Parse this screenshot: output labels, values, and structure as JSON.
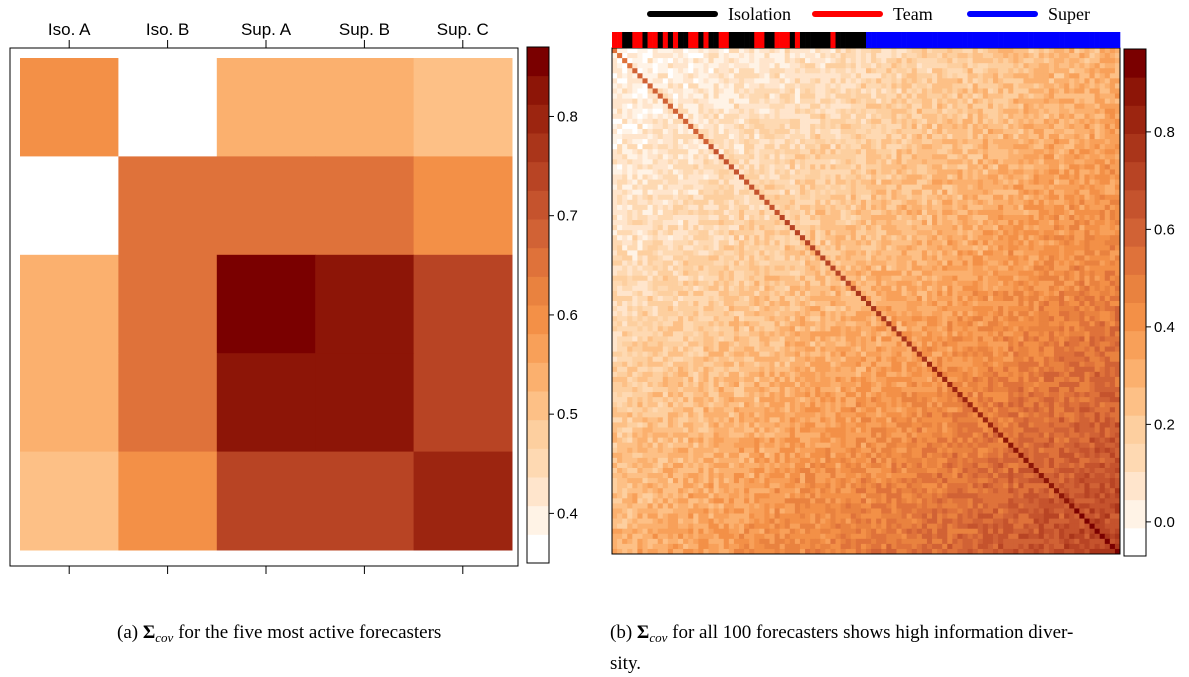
{
  "chart_data": [
    {
      "type": "heatmap",
      "panel": "a",
      "column_labels": [
        "Iso. A",
        "Iso. B",
        "Sup. A",
        "Sup. B",
        "Sup. C"
      ],
      "row_labels": [],
      "matrix": [
        [
          0.6,
          0.35,
          0.55,
          0.55,
          0.5
        ],
        [
          0.35,
          0.65,
          0.65,
          0.65,
          0.6
        ],
        [
          0.55,
          0.65,
          0.86,
          0.83,
          0.75
        ],
        [
          0.55,
          0.65,
          0.83,
          0.83,
          0.75
        ],
        [
          0.5,
          0.6,
          0.75,
          0.75,
          0.8
        ]
      ],
      "colorbar": {
        "min": 0.35,
        "max": 0.87,
        "ticks": [
          0.4,
          0.5,
          0.6,
          0.7,
          0.8
        ],
        "tick_labels": [
          "0.4",
          "0.5",
          "0.6",
          "0.7",
          "0.8"
        ]
      }
    },
    {
      "type": "heatmap",
      "panel": "b",
      "n": 100,
      "description_of_values": "100x100 covariance matrix; values increase toward lower-right, diagonal highest",
      "diagonal_value": 0.9,
      "corner_values": {
        "top_left": 0.05,
        "bottom_right": 0.9,
        "off_diagonal_min": -0.05
      },
      "colorbar": {
        "min": -0.07,
        "max": 0.97,
        "ticks": [
          0.0,
          0.2,
          0.4,
          0.6,
          0.8
        ],
        "tick_labels": [
          "0.0",
          "0.2",
          "0.4",
          "0.6",
          "0.8"
        ]
      },
      "legend": [
        {
          "label": "Isolation",
          "color": "#000000"
        },
        {
          "label": "Team",
          "color": "#ff0000"
        },
        {
          "label": "Super",
          "color": "#0000ff"
        }
      ],
      "group_strip_counts": {
        "Isolation": 30,
        "Team": 20,
        "Super": 50
      }
    }
  ],
  "captions": {
    "a": {
      "prefix": "(a)",
      "symbol": "Σ",
      "subscript": "cov",
      "text": "for the five most active forecasters"
    },
    "b": {
      "prefix": "(b)",
      "symbol": "Σ",
      "subscript": "cov",
      "text_line1": "for all 100 forecasters shows high information diver-",
      "text_line2": "sity."
    }
  },
  "palette": [
    "#ffffff",
    "#fff3e6",
    "#ffe5cc",
    "#fed9b2",
    "#fdcf9f",
    "#fdc086",
    "#fbb06e",
    "#f8a059",
    "#f39047",
    "#e9823f",
    "#df723a",
    "#d16235",
    "#c5532d",
    "#b84424",
    "#aa351a",
    "#9c2510",
    "#8d1507",
    "#7a0000"
  ]
}
